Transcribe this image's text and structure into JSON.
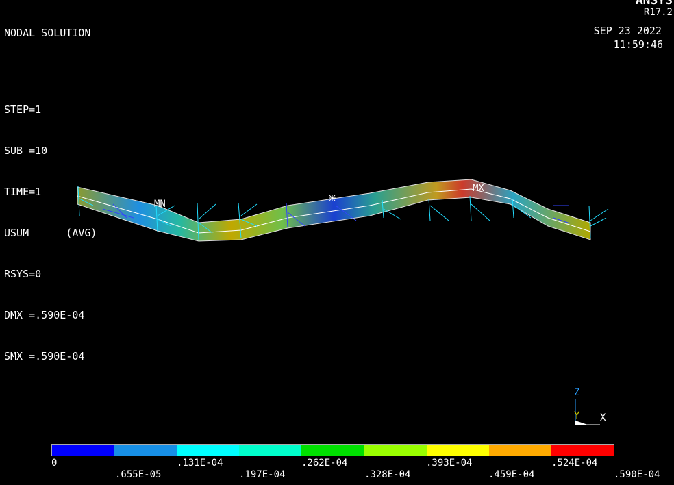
{
  "header": {
    "title": "NODAL SOLUTION",
    "lines": [
      "STEP=1",
      "SUB =10",
      "TIME=1",
      "USUM      (AVG)",
      "RSYS=0",
      "DMX =.590E-04",
      "SMX =.590E-04"
    ],
    "brand": "ANSYS",
    "version": "R17.2",
    "date": "SEP 23 2022",
    "time": "11:59:46"
  },
  "markers": {
    "min_label": "MN",
    "max_label": "MX"
  },
  "triad": {
    "z": "Z",
    "y": "Y",
    "x": "X"
  },
  "legend": {
    "colors": [
      "#0000ff",
      "#178fe6",
      "#00ffff",
      "#00ffcc",
      "#00e000",
      "#99ff00",
      "#ffff00",
      "#ffaa00",
      "#ff0000"
    ],
    "labels_top": [
      "0",
      ".131E-04",
      ".262E-04",
      ".393E-04",
      ".524E-04"
    ],
    "labels_bottom": [
      ".655E-05",
      ".197E-04",
      ".328E-04",
      ".459E-04",
      ".590E-04"
    ]
  }
}
